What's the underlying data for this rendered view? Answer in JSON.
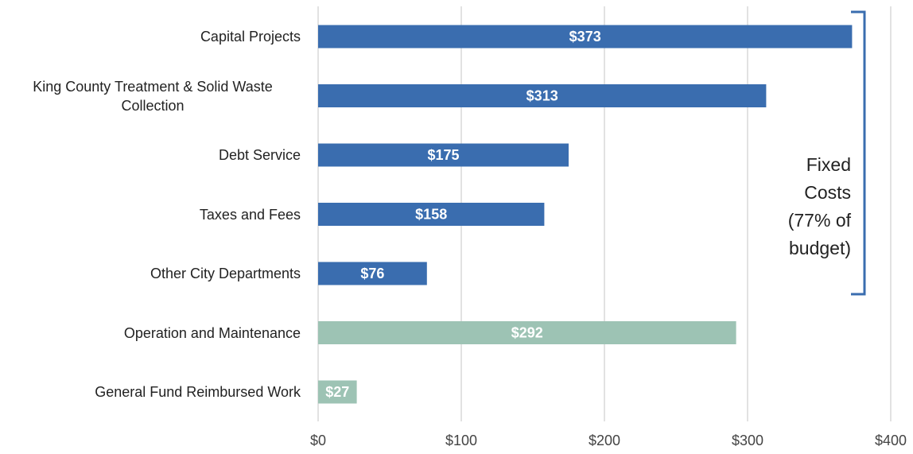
{
  "chart_data": {
    "type": "bar",
    "orientation": "horizontal",
    "categories": [
      "Capital Projects",
      "King County Treatment & Solid Waste Collection",
      "Debt Service",
      "Taxes and Fees",
      "Other City Departments",
      "Operation and Maintenance",
      "General Fund Reimbursed Work"
    ],
    "values": [
      373,
      313,
      175,
      158,
      76,
      292,
      27
    ],
    "value_labels": [
      "$373",
      "$313",
      "$175",
      "$158",
      "$76",
      "$292",
      "$27"
    ],
    "colors": [
      "#3a6daf",
      "#3a6daf",
      "#3a6daf",
      "#3a6daf",
      "#3a6daf",
      "#9dc3b4",
      "#9dc3b4"
    ],
    "xlim": [
      0,
      400
    ],
    "xticks": [
      {
        "value": 0,
        "label": "$0"
      },
      {
        "value": 100,
        "label": "$100"
      },
      {
        "value": 200,
        "label": "$200"
      },
      {
        "value": 300,
        "label": "$300"
      },
      {
        "value": 400,
        "label": "$400"
      }
    ],
    "grid": true,
    "annotation": "Fixed Costs (77% of budget)"
  }
}
